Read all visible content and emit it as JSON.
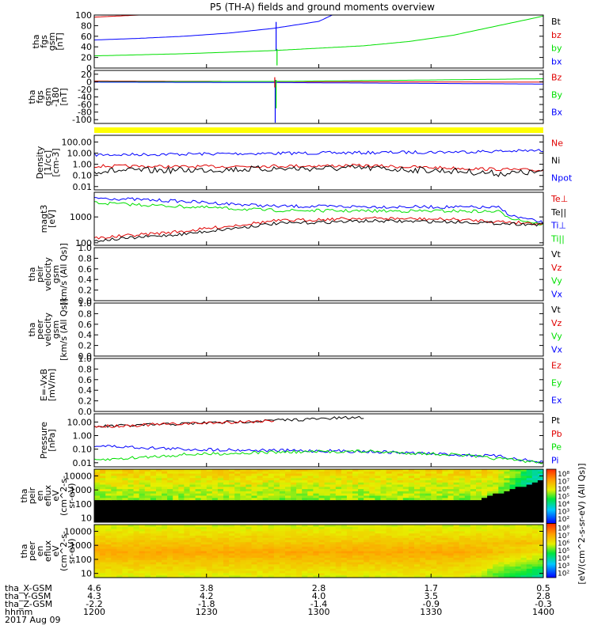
{
  "title": "P5 (TH-A) fields and ground moments overview",
  "colors": {
    "black": "#000000",
    "red": "#e00000",
    "green": "#00e000",
    "blue": "#0000ff",
    "yellow": "#ffff00"
  },
  "chart_data": [
    {
      "type": "line",
      "key": "p1",
      "ylabel": [
        "tha",
        "fgs",
        "gsm",
        "[nT]"
      ],
      "ylim": [
        0,
        100
      ],
      "ticks": [
        "100",
        "80",
        "60",
        "40",
        "20",
        "0"
      ],
      "log": false,
      "legend": [
        {
          "text": "Bt",
          "color": "black"
        },
        {
          "text": "bz",
          "color": "red"
        },
        {
          "text": "by",
          "color": "green"
        },
        {
          "text": "bx",
          "color": "blue"
        }
      ],
      "series": [
        {
          "name": "bz",
          "color": "red",
          "x": [
            0,
            0.1,
            0.18
          ],
          "y": [
            96,
            100,
            104
          ]
        },
        {
          "name": "bx",
          "color": "blue",
          "x": [
            0,
            0.1,
            0.2,
            0.3,
            0.4,
            0.5,
            0.53
          ],
          "y": [
            53,
            56,
            60,
            66,
            75,
            88,
            100
          ]
        },
        {
          "name": "by",
          "color": "green",
          "x": [
            0,
            0.2,
            0.4,
            0.6,
            0.7,
            0.8,
            0.9,
            1.0
          ],
          "y": [
            23,
            27,
            33,
            42,
            50,
            62,
            80,
            98
          ]
        }
      ],
      "spikes": [
        {
          "x": 0.405,
          "color": "blue",
          "y0": 87,
          "y1": 33
        },
        {
          "x": 0.407,
          "color": "green",
          "y0": 36,
          "y1": 5
        }
      ]
    },
    {
      "type": "line",
      "key": "p2",
      "ylabel": [
        "tha",
        "fgs",
        "gsm",
        "-180",
        "[nT]"
      ],
      "ylim": [
        -110,
        30
      ],
      "ticks": [
        "20",
        "0",
        "-20",
        "-40",
        "-60",
        "-80",
        "-100"
      ],
      "log": false,
      "legend": [
        {
          "text": "Bz",
          "color": "red"
        },
        {
          "text": "By",
          "color": "green"
        },
        {
          "text": "Bx",
          "color": "blue"
        }
      ],
      "series": [
        {
          "name": "Bz",
          "color": "red",
          "x": [
            0,
            0.3,
            0.6,
            1.0
          ],
          "y": [
            2,
            1,
            0,
            -1
          ]
        },
        {
          "name": "By",
          "color": "green",
          "x": [
            0,
            0.4,
            0.7,
            1.0
          ],
          "y": [
            0,
            1,
            4,
            8
          ]
        },
        {
          "name": "Bx",
          "color": "blue",
          "x": [
            0,
            0.4,
            0.7,
            1.0
          ],
          "y": [
            -1,
            -2,
            -4,
            -6
          ]
        }
      ],
      "spikes": [
        {
          "x": 0.403,
          "color": "blue",
          "y0": 5,
          "y1": -108
        },
        {
          "x": 0.405,
          "color": "green",
          "y0": 5,
          "y1": -70
        },
        {
          "x": 0.402,
          "color": "red",
          "y0": 12,
          "y1": -15
        }
      ]
    },
    {
      "type": "line",
      "key": "p3",
      "ylabel": [
        "Density",
        "[1/cc]",
        "[cm-3]"
      ],
      "ylim": [
        0.005,
        400
      ],
      "ticks": [
        "100.00",
        "10.00",
        "1.00",
        "0.10",
        "0.01"
      ],
      "tickvals": [
        100,
        10,
        1,
        0.1,
        0.01
      ],
      "log": true,
      "legend": [
        {
          "text": "Ne",
          "color": "red"
        },
        {
          "text": "Ni",
          "color": "black"
        },
        {
          "text": "Npot",
          "color": "blue"
        }
      ],
      "series": [
        {
          "name": "Npot",
          "color": "blue",
          "x": [
            0,
            0.3,
            0.6,
            0.8,
            1.0
          ],
          "y": [
            7,
            9,
            11,
            13,
            17
          ]
        },
        {
          "name": "Ne",
          "color": "red",
          "x": [
            0,
            0.2,
            0.4,
            0.6,
            0.8,
            1.0
          ],
          "y": [
            0.7,
            0.6,
            0.7,
            0.75,
            0.45,
            0.28
          ]
        },
        {
          "name": "Ni",
          "color": "black",
          "x": [
            0,
            0.2,
            0.4,
            0.6,
            0.8,
            0.9,
            1.0
          ],
          "y": [
            0.25,
            0.3,
            0.4,
            0.45,
            0.25,
            0.15,
            0.2
          ]
        }
      ]
    },
    {
      "type": "line",
      "key": "p4",
      "ylabel": [
        "magt3",
        "[eV]"
      ],
      "ylim": [
        80,
        9000
      ],
      "ticks": [
        "1000",
        "100"
      ],
      "tickvals": [
        1000,
        100
      ],
      "log": true,
      "legend": [
        {
          "text": "Te⊥",
          "color": "red"
        },
        {
          "text": "Te||",
          "color": "black"
        },
        {
          "text": "Ti⊥",
          "color": "blue"
        },
        {
          "text": "Ti||",
          "color": "green"
        }
      ],
      "series": [
        {
          "name": "Ti⊥",
          "color": "blue",
          "x": [
            0,
            0.2,
            0.4,
            0.6,
            0.8,
            0.9,
            0.93,
            1.0
          ],
          "y": [
            5500,
            4000,
            2600,
            2500,
            2400,
            2300,
            1100,
            600
          ]
        },
        {
          "name": "Ti||",
          "color": "green",
          "x": [
            0,
            0.2,
            0.4,
            0.6,
            0.8,
            0.9,
            0.93,
            1.0
          ],
          "y": [
            3500,
            2500,
            1800,
            1700,
            1700,
            1600,
            900,
            500
          ]
        },
        {
          "name": "Te⊥",
          "color": "red",
          "x": [
            0,
            0.2,
            0.4,
            0.6,
            0.8,
            1.0
          ],
          "y": [
            150,
            280,
            700,
            900,
            800,
            550
          ]
        },
        {
          "name": "Te||",
          "color": "black",
          "x": [
            0,
            0.2,
            0.4,
            0.6,
            0.8,
            1.0
          ],
          "y": [
            120,
            220,
            550,
            700,
            650,
            500
          ]
        }
      ]
    },
    {
      "type": "line",
      "key": "p5",
      "ylabel": [
        "tha",
        "peir",
        "velocity",
        "gsm",
        "[km/s (All Qs)]"
      ],
      "ylim": [
        0,
        1
      ],
      "ticks": [
        "1.0",
        "0.8",
        "0.6",
        "0.4",
        "0.2",
        "0.0"
      ],
      "log": false,
      "legend": [
        {
          "text": "Vt",
          "color": "black"
        },
        {
          "text": "Vz",
          "color": "red"
        },
        {
          "text": "Vy",
          "color": "green"
        },
        {
          "text": "Vx",
          "color": "blue"
        }
      ],
      "series": []
    },
    {
      "type": "line",
      "key": "p6",
      "ylabel": [
        "tha",
        "peer",
        "velocity",
        "gsm",
        "[km/s (All Qs)]"
      ],
      "ylim": [
        0,
        1
      ],
      "ticks": [
        "1.0",
        "0.8",
        "0.6",
        "0.4",
        "0.2",
        "0.0"
      ],
      "log": false,
      "legend": [
        {
          "text": "Vt",
          "color": "black"
        },
        {
          "text": "Vz",
          "color": "red"
        },
        {
          "text": "Vy",
          "color": "green"
        },
        {
          "text": "Vx",
          "color": "blue"
        }
      ],
      "series": []
    },
    {
      "type": "line",
      "key": "p7",
      "ylabel": [
        "E=-VxB",
        "[mV/m]"
      ],
      "ylim": [
        0,
        1
      ],
      "ticks": [
        "1.0",
        "0.8",
        "0.6",
        "0.4",
        "0.2",
        "0.0"
      ],
      "log": false,
      "legend": [
        {
          "text": "Ez",
          "color": "red"
        },
        {
          "text": "Ey",
          "color": "green"
        },
        {
          "text": "Ex",
          "color": "blue"
        }
      ],
      "series": []
    },
    {
      "type": "line",
      "key": "p8",
      "ylabel": [
        "Pressure",
        "[nPa]"
      ],
      "ylim": [
        0.005,
        40
      ],
      "ticks": [
        "10.00",
        "1.00",
        "0.10",
        "0.01"
      ],
      "tickvals": [
        10,
        1,
        0.1,
        0.01
      ],
      "log": true,
      "legend": [
        {
          "text": "Pt",
          "color": "black"
        },
        {
          "text": "Pb",
          "color": "red"
        },
        {
          "text": "Pe",
          "color": "green"
        },
        {
          "text": "Pi",
          "color": "blue"
        }
      ],
      "series": [
        {
          "name": "Pt",
          "color": "black",
          "x": [
            0,
            0.2,
            0.4,
            0.6
          ],
          "y": [
            4.5,
            7.5,
            13,
            22
          ]
        },
        {
          "name": "Pb",
          "color": "red",
          "x": [
            0,
            0.2,
            0.4
          ],
          "y": [
            4.6,
            7.6,
            12.5
          ]
        },
        {
          "name": "Pi",
          "color": "blue",
          "x": [
            0,
            0.2,
            0.4,
            0.6,
            0.8,
            0.9,
            1.0
          ],
          "y": [
            0.18,
            0.1,
            0.08,
            0.07,
            0.04,
            0.03,
            0.01
          ]
        },
        {
          "name": "Pe",
          "color": "green",
          "x": [
            0,
            0.2,
            0.4,
            0.6,
            0.8,
            0.9,
            1.0
          ],
          "y": [
            0.015,
            0.04,
            0.06,
            0.07,
            0.04,
            0.02,
            0.01
          ]
        }
      ]
    },
    {
      "type": "heatmap",
      "key": "p9",
      "ylabel": [
        "tha",
        "peir",
        "en",
        "eflux",
        "eV",
        "(cm^2-s-",
        "sr-eV)"
      ],
      "ylim": [
        5,
        30000
      ],
      "ticks": [
        "10000",
        "1000",
        "100",
        "10"
      ],
      "tickvals": [
        10000,
        1000,
        100,
        10
      ],
      "log": true
    },
    {
      "type": "heatmap",
      "key": "p10",
      "ylabel": [
        "tha",
        "peer",
        "en",
        "eflux",
        "eV",
        "(cm^2-s-",
        "sr-eV)"
      ],
      "ylim": [
        5,
        30000
      ],
      "ticks": [
        "10000",
        "1000",
        "100",
        "10"
      ],
      "tickvals": [
        10000,
        1000,
        100,
        10
      ],
      "log": true
    }
  ],
  "colorbar": {
    "label": "[eV/(cm^2-s-sr-eV) (All Qs)]",
    "ticks": [
      "10⁸",
      "10⁷",
      "10⁶",
      "10⁵",
      "10⁴",
      "10³",
      "10²",
      "10⁸",
      "10⁷",
      "10⁶",
      "10⁵",
      "10⁴",
      "10³",
      "10²"
    ]
  },
  "xaxis": {
    "rows": [
      {
        "label": "tha_X-GSM",
        "values": [
          "4.6",
          "3.8",
          "2.8",
          "1.7",
          "0.5"
        ]
      },
      {
        "label": "tha_Y-GSM",
        "values": [
          "4.3",
          "4.2",
          "4.0",
          "3.5",
          "2.8"
        ]
      },
      {
        "label": "tha_Z-GSM",
        "values": [
          "-2.2",
          "-1.8",
          "-1.4",
          "-0.9",
          "-0.3"
        ]
      },
      {
        "label": "hhmm",
        "values": [
          "1200",
          "1230",
          "1300",
          "1330",
          "1400"
        ]
      }
    ],
    "date": "2017 Aug 09"
  }
}
